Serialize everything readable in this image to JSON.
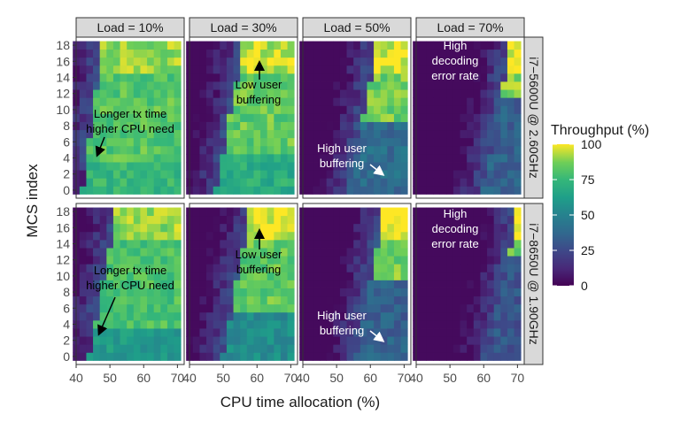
{
  "chart_data": {
    "type": "heatmap",
    "xlabel": "CPU time allocation (%)",
    "ylabel": "MCS index",
    "x_ticks": [
      40,
      50,
      60,
      70
    ],
    "y_ticks": [
      0,
      2,
      4,
      6,
      8,
      10,
      12,
      14,
      16,
      18
    ],
    "xlim": [
      40,
      72
    ],
    "ylim": [
      -1,
      19
    ],
    "col_facets": [
      "Load = 10%",
      "Load = 30%",
      "Load = 50%",
      "Load = 70%"
    ],
    "row_facets": [
      "i7−5600U @ 2.60GHz",
      "i7−8650U @ 1.90GHz"
    ],
    "legend": {
      "title": "Throughput (%)",
      "position": "right",
      "ticks": [
        100,
        75,
        50,
        25,
        0
      ],
      "range": [
        0,
        100
      ],
      "colormap": "viridis"
    },
    "annotations": [
      {
        "panel": [
          0,
          0
        ],
        "lines": [
          "Longer tx time",
          "higher CPU need"
        ],
        "color": "#000000"
      },
      {
        "panel": [
          0,
          1
        ],
        "lines": [
          "Low user",
          "buffering"
        ],
        "color": "#000000"
      },
      {
        "panel": [
          0,
          2
        ],
        "lines": [
          "High user",
          "buffering"
        ],
        "color": "#ffffff"
      },
      {
        "panel": [
          0,
          3
        ],
        "lines": [
          "High",
          "decoding",
          "error rate"
        ],
        "color": "#ffffff"
      },
      {
        "panel": [
          1,
          0
        ],
        "lines": [
          "Longer tx time",
          "higher CPU need"
        ],
        "color": "#000000"
      },
      {
        "panel": [
          1,
          1
        ],
        "lines": [
          "Low user",
          "buffering"
        ],
        "color": "#000000"
      },
      {
        "panel": [
          1,
          2
        ],
        "lines": [
          "High user",
          "buffering"
        ],
        "color": "#ffffff"
      },
      {
        "panel": [
          1,
          3
        ],
        "lines": [
          "High",
          "decoding",
          "error rate"
        ],
        "color": "#ffffff"
      }
    ],
    "x_values": [
      40,
      42,
      44,
      46,
      48,
      50,
      52,
      54,
      56,
      58,
      60,
      62,
      64,
      66,
      68,
      70
    ],
    "y_values": [
      0,
      1,
      2,
      3,
      4,
      5,
      6,
      7,
      8,
      9,
      10,
      11,
      12,
      13,
      14,
      15,
      16,
      17,
      18
    ],
    "panels": [
      {
        "row": 0,
        "col": 0,
        "threshold_mcs_low": 42,
        "threshold_mcs_high": 48,
        "level_high": 82,
        "level_mid": 74,
        "saturation_top": 90,
        "dark_below": 4
      },
      {
        "row": 0,
        "col": 1,
        "threshold_mcs_low": 48,
        "threshold_mcs_high": 56,
        "level_high": 84,
        "level_mid": 70,
        "saturation_top": 95,
        "dark_below": 5
      },
      {
        "row": 0,
        "col": 2,
        "threshold_mcs_low": 54,
        "threshold_mcs_high": 62,
        "level_high": 86,
        "level_mid": 40,
        "saturation_top": 98,
        "dark_below": 9
      },
      {
        "row": 0,
        "col": 3,
        "threshold_mcs_low": 60,
        "threshold_mcs_high": 68,
        "level_high": 88,
        "level_mid": 35,
        "saturation_top": 100,
        "dark_below": 12
      },
      {
        "row": 1,
        "col": 0,
        "threshold_mcs_low": 44,
        "threshold_mcs_high": 52,
        "level_high": 80,
        "level_mid": 60,
        "saturation_top": 90,
        "dark_below": 4
      },
      {
        "row": 1,
        "col": 1,
        "threshold_mcs_low": 50,
        "threshold_mcs_high": 58,
        "level_high": 84,
        "level_mid": 55,
        "saturation_top": 98,
        "dark_below": 6
      },
      {
        "row": 1,
        "col": 2,
        "threshold_mcs_low": 56,
        "threshold_mcs_high": 64,
        "level_high": 86,
        "level_mid": 35,
        "saturation_top": 100,
        "dark_below": 10
      },
      {
        "row": 1,
        "col": 3,
        "threshold_mcs_low": 62,
        "threshold_mcs_high": 70,
        "level_high": 88,
        "level_mid": 30,
        "saturation_top": 100,
        "dark_below": 13
      }
    ]
  }
}
